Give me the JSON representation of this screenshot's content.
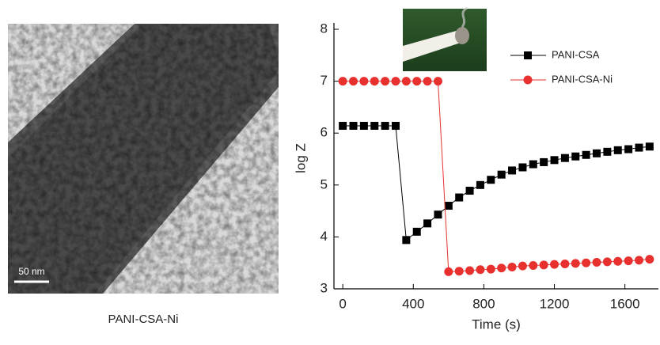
{
  "image": {
    "scale_bar": "50 nm",
    "caption": "PANI-CSA-Ni"
  },
  "chart_data": {
    "type": "line",
    "xlabel": "Time (s)",
    "ylabel": "log Z",
    "x": [
      0,
      60,
      120,
      180,
      240,
      300,
      360,
      420,
      480,
      540,
      600,
      660,
      720,
      780,
      840,
      900,
      960,
      1020,
      1080,
      1140,
      1200,
      1260,
      1320,
      1380,
      1440,
      1500,
      1560,
      1620,
      1680,
      1740
    ],
    "series": [
      {
        "name": "PANI-CSA",
        "color": "#000000",
        "marker": "square",
        "values": [
          6.14,
          6.14,
          6.14,
          6.14,
          6.14,
          6.14,
          3.94,
          4.1,
          4.26,
          4.43,
          4.6,
          4.76,
          4.89,
          5.0,
          5.1,
          5.2,
          5.28,
          5.34,
          5.4,
          5.44,
          5.48,
          5.52,
          5.55,
          5.58,
          5.61,
          5.64,
          5.67,
          5.69,
          5.72,
          5.74
        ]
      },
      {
        "name": "PANI-CSA-Ni",
        "color": "#e8302e",
        "marker": "circle",
        "values": [
          7.0,
          7.0,
          7.0,
          7.0,
          7.0,
          7.0,
          7.0,
          7.0,
          7.0,
          7.0,
          3.33,
          3.34,
          3.35,
          3.37,
          3.38,
          3.4,
          3.42,
          3.44,
          3.45,
          3.46,
          3.47,
          3.48,
          3.49,
          3.5,
          3.51,
          3.52,
          3.53,
          3.54,
          3.55,
          3.57
        ]
      }
    ],
    "xlim": [
      -50,
      1790
    ],
    "ylim": [
      3,
      8
    ],
    "xticks": [
      0,
      400,
      800,
      1200,
      1600
    ],
    "yticks": [
      3,
      4,
      5,
      6,
      7,
      8
    ],
    "legend": "upper right"
  }
}
